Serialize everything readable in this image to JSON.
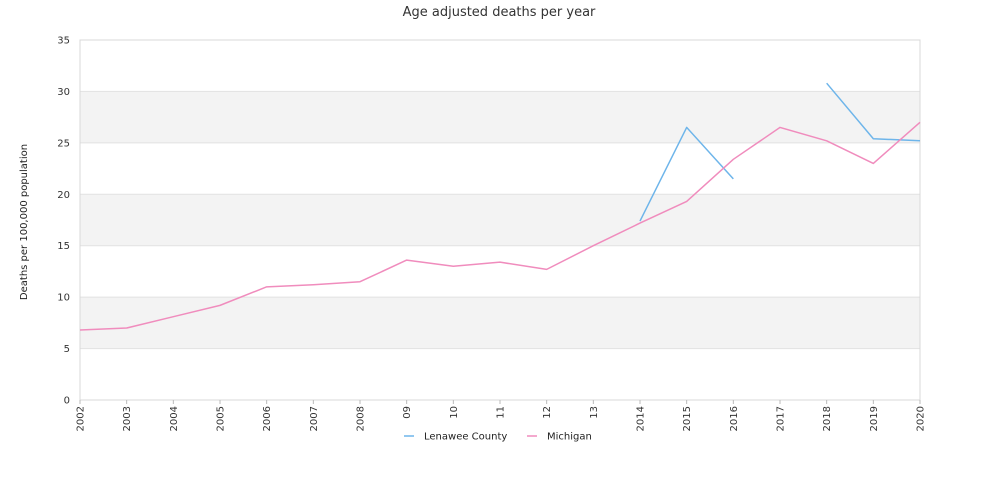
{
  "chart_data": {
    "type": "line",
    "title": "Age adjusted deaths per year",
    "xlabel": "",
    "ylabel": "Deaths per 100,000 population",
    "ylim": [
      0,
      35
    ],
    "yticks": [
      0,
      5,
      10,
      15,
      20,
      25,
      30,
      35
    ],
    "grid": "alternating horizontal bands",
    "legend_position": "bottom-center",
    "x": [
      "2002",
      "2003",
      "2004",
      "2005",
      "2006",
      "2007",
      "2008",
      "09",
      "10",
      "11",
      "12",
      "13",
      "2014",
      "2015",
      "2016",
      "2017",
      "2018",
      "2019",
      "2020"
    ],
    "series": [
      {
        "name": "Lenawee County",
        "color": "#6eb5ea",
        "values": [
          null,
          null,
          null,
          null,
          null,
          null,
          null,
          null,
          null,
          null,
          null,
          null,
          17.4,
          26.5,
          21.5,
          null,
          30.8,
          25.4,
          25.2
        ]
      },
      {
        "name": "Michigan",
        "color": "#f08cbd",
        "values": [
          6.8,
          7.0,
          8.1,
          9.2,
          11.0,
          11.2,
          11.5,
          13.6,
          13.0,
          13.4,
          12.7,
          15.0,
          17.2,
          19.3,
          23.4,
          26.5,
          25.2,
          23.0,
          27.0
        ]
      }
    ]
  }
}
